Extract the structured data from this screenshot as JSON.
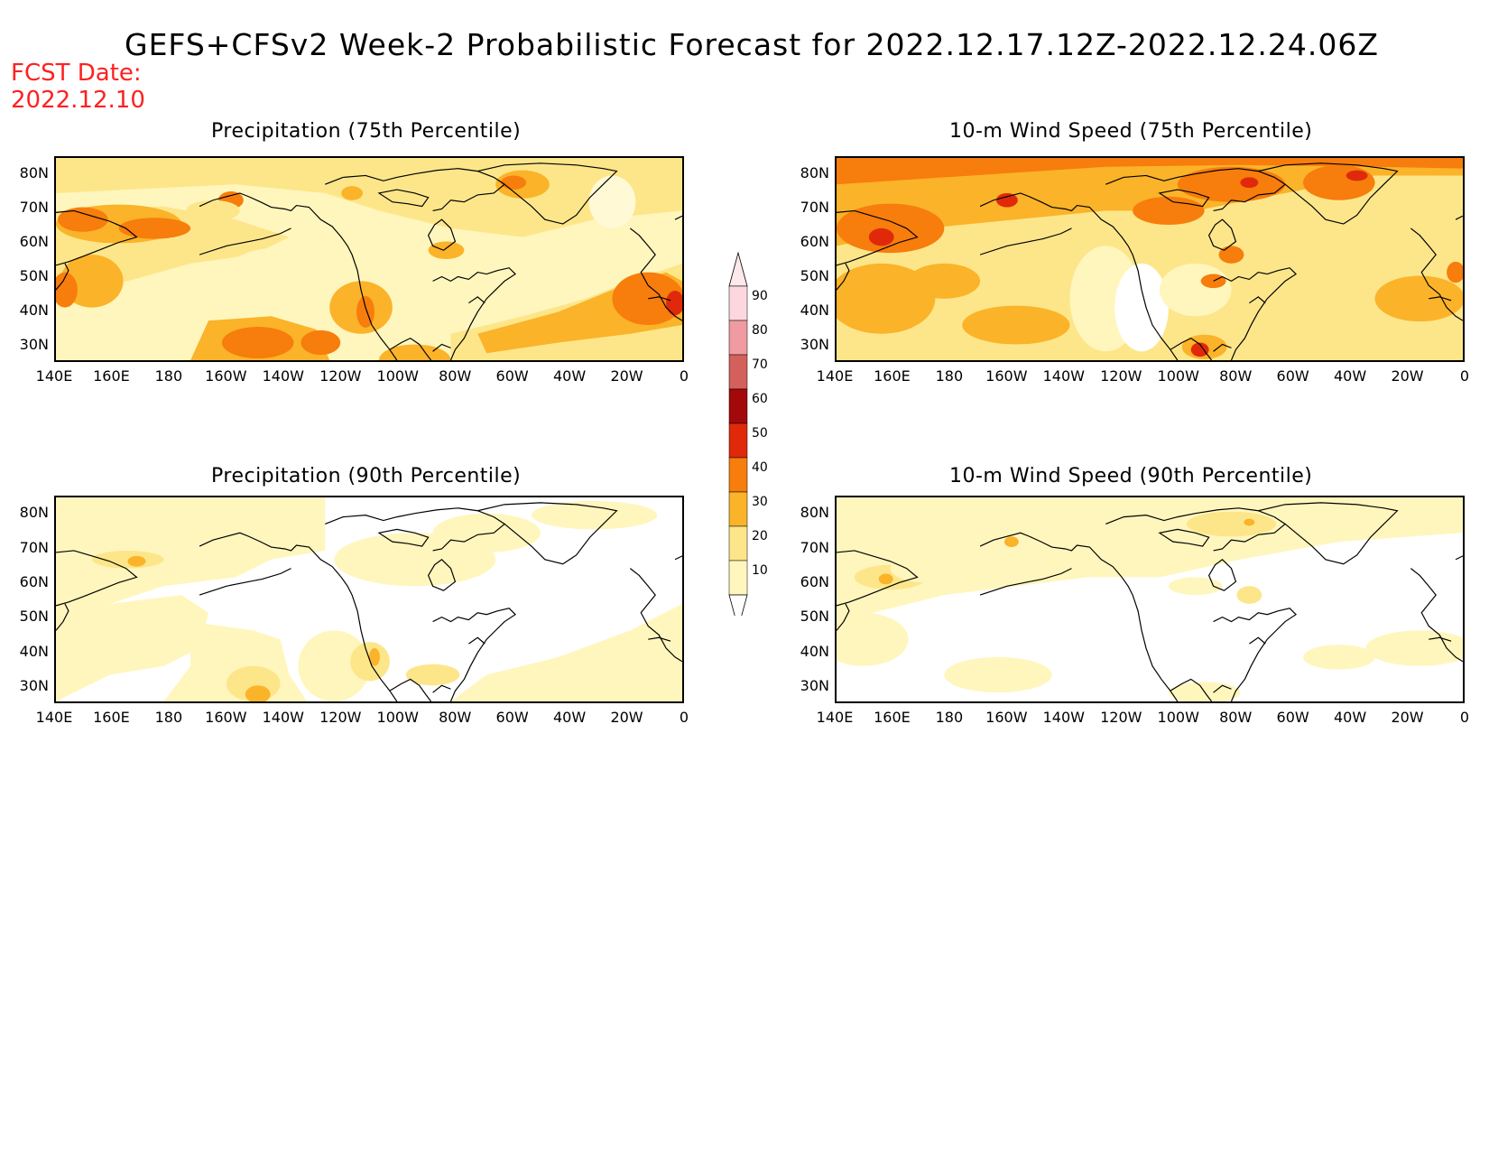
{
  "title": "GEFS+CFSv2 Week-2 Probabilistic Forecast for 2022.12.17.12Z-2022.12.24.06Z",
  "fcst_label": "FCST Date:",
  "fcst_date": "2022.12.10",
  "lat_labels": [
    "80N",
    "70N",
    "60N",
    "50N",
    "40N",
    "30N"
  ],
  "lon_labels": [
    "140E",
    "160E",
    "180",
    "160W",
    "140W",
    "120W",
    "100W",
    "80W",
    "60W",
    "40W",
    "20W",
    "0"
  ],
  "colors": {
    "c10": "#fff6bd",
    "c20": "#fde68a",
    "c30": "#fbb329",
    "c40": "#f77d0c",
    "c50": "#e0290b",
    "c60": "#a3080a",
    "c70": "#d4605b",
    "c80": "#f09aa1",
    "c90": "#fcd8de"
  },
  "colorbar": {
    "levels": [
      "90",
      "80",
      "70",
      "60",
      "50",
      "40",
      "30",
      "20",
      "10"
    ]
  },
  "panels": [
    {
      "id": "precip-75",
      "title": "Precipitation (75th Percentile)",
      "variable": "Precipitation",
      "percentile": "75th"
    },
    {
      "id": "wind-75",
      "title": "10-m Wind Speed (75th Percentile)",
      "variable": "10-m Wind Speed",
      "percentile": "75th"
    },
    {
      "id": "precip-90",
      "title": "Precipitation (90th Percentile)",
      "variable": "Precipitation",
      "percentile": "90th"
    },
    {
      "id": "wind-90",
      "title": "10-m Wind Speed (90th Percentile)",
      "variable": "10-m Wind Speed",
      "percentile": "90th"
    }
  ]
}
